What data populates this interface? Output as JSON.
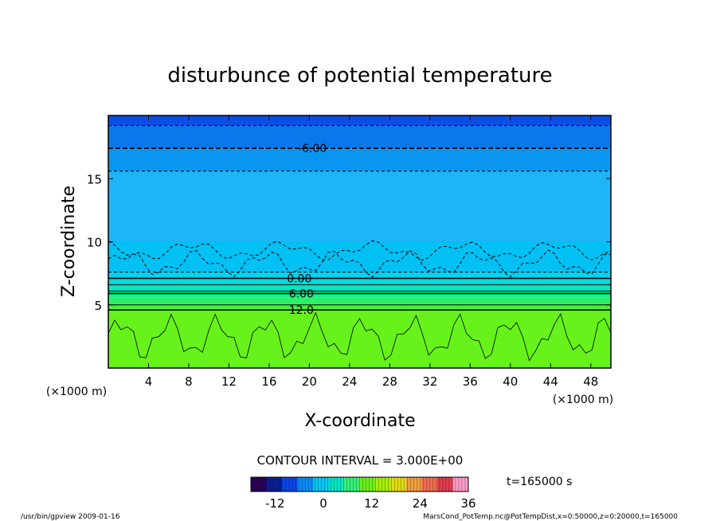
{
  "chart_data": {
    "type": "heatmap",
    "title": "disturbunce of potential temperature",
    "xlabel": "X-coordinate",
    "ylabel": "Z-coordinate",
    "x_unit": "(×1000 m)",
    "y_unit": "(×1000 m)",
    "xlim": [
      0,
      50
    ],
    "ylim": [
      0,
      20
    ],
    "x_ticks": [
      4,
      8,
      12,
      16,
      20,
      24,
      28,
      32,
      36,
      40,
      44,
      48
    ],
    "y_ticks": [
      5,
      10,
      15
    ],
    "contour_interval_text": "CONTOUR INTERVAL = 3.000E+00",
    "time_text": "t=165000 s",
    "colorbar": {
      "range": [
        -18,
        36
      ],
      "ticks": [
        -12,
        0,
        12,
        24,
        36
      ],
      "colors": [
        "#2a005a",
        "#0a1e96",
        "#0b46e6",
        "#0b8cf5",
        "#00c8f5",
        "#00e6c8",
        "#37f078",
        "#6ef01e",
        "#a8f000",
        "#e1dc14",
        "#f0a03c",
        "#f06e50",
        "#e13c50",
        "#ff9bc8"
      ]
    },
    "contour_labels": [
      {
        "text": "-6.00",
        "x": 20.3,
        "z": 17.4
      },
      {
        "text": "0.00",
        "x": 19.0,
        "z": 7.1
      },
      {
        "text": "6.00",
        "x": 19.2,
        "z": 5.9
      },
      {
        "text": "12.0",
        "x": 19.2,
        "z": 4.6
      }
    ],
    "value_bands": [
      {
        "z_from": 0.0,
        "z_to": 4.6,
        "value": 16.5,
        "color": "#66f21a"
      },
      {
        "z_from": 4.6,
        "z_to": 5.0,
        "value": 13.5,
        "color": "#4cf032"
      },
      {
        "z_from": 5.0,
        "z_to": 5.6,
        "value": 10.5,
        "color": "#2cf064"
      },
      {
        "z_from": 5.6,
        "z_to": 6.1,
        "value": 7.5,
        "color": "#18ec96"
      },
      {
        "z_from": 6.1,
        "z_to": 6.6,
        "value": 4.5,
        "color": "#00e6c0"
      },
      {
        "z_from": 6.6,
        "z_to": 7.0,
        "value": 1.5,
        "color": "#00dcdc"
      },
      {
        "z_from": 7.0,
        "z_to": 7.6,
        "value": -1.5,
        "color": "#00d2f0"
      },
      {
        "z_from": 7.6,
        "z_to": 10.0,
        "value": -3.0,
        "color": "#00c0f4"
      },
      {
        "z_from": 10.0,
        "z_to": 15.6,
        "value": -4.5,
        "color": "#1eb4f8"
      },
      {
        "z_from": 15.6,
        "z_to": 17.4,
        "value": -6.5,
        "color": "#0a96f0"
      },
      {
        "z_from": 17.4,
        "z_to": 19.2,
        "value": -8.0,
        "color": "#0a78ec"
      },
      {
        "z_from": 19.2,
        "z_to": 20.0,
        "value": -10.5,
        "color": "#0b4ee4"
      }
    ]
  },
  "footer": {
    "left": "/usr/bin/gpview   2009-01-16",
    "right": "MarsCond_PotTemp.nc@PotTempDist,x=0:50000,z=0:20000,t=165000"
  }
}
